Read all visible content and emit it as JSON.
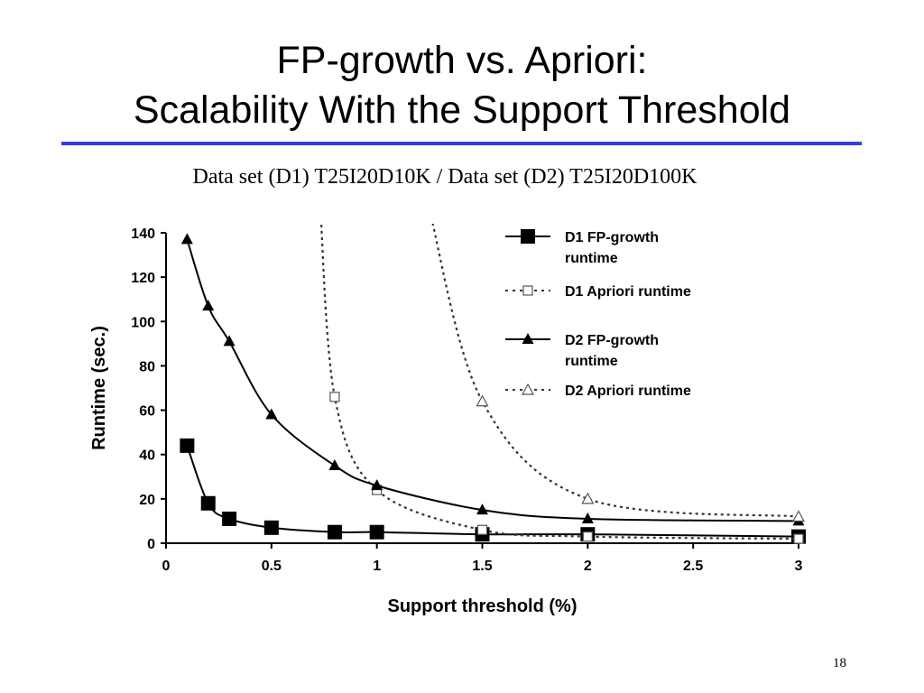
{
  "slide": {
    "title_line1": "FP-growth vs. Apriori:",
    "title_line2": "Scalability With the Support Threshold",
    "subtitle": "Data set (D1) T25I20D10K / Data set (D2) T25I20D100K",
    "page_number": "18",
    "rule_color": "#3b3ecf"
  },
  "chart_data": {
    "type": "line",
    "title": "",
    "xlabel": "Support threshold (%)",
    "ylabel": "Runtime (sec.)",
    "xlim": [
      0,
      3
    ],
    "ylim": [
      0,
      140
    ],
    "x_ticks": [
      0,
      0.5,
      1,
      1.5,
      2,
      2.5,
      3
    ],
    "x_tick_labels": [
      "0",
      "0.5",
      "1",
      "1.5",
      "2",
      "2.5",
      "3"
    ],
    "y_ticks": [
      0,
      20,
      40,
      60,
      80,
      100,
      120,
      140
    ],
    "y_tick_labels": [
      "0",
      "20",
      "40",
      "60",
      "80",
      "100",
      "120",
      "140"
    ],
    "grid": false,
    "legend_position": "top-right",
    "series": [
      {
        "name": "D1 FP-growth runtime",
        "line": "solid",
        "marker": "filled-square",
        "x": [
          0.1,
          0.2,
          0.3,
          0.5,
          0.8,
          1,
          1.5,
          2,
          3
        ],
        "y": [
          44,
          18,
          11,
          7,
          5,
          5,
          4,
          4,
          3
        ]
      },
      {
        "name": "D1 Apriori runtime",
        "line": "dotted",
        "marker": "open-square",
        "x": [
          0.8,
          1,
          1.5,
          2,
          3
        ],
        "y": [
          66,
          24,
          6,
          3,
          2
        ]
      },
      {
        "name": "D2 FP-growth runtime",
        "line": "solid",
        "marker": "filled-triangle",
        "x": [
          0.1,
          0.2,
          0.3,
          0.5,
          0.8,
          1,
          1.5,
          2,
          3
        ],
        "y": [
          137,
          107,
          91,
          58,
          35,
          26,
          15,
          11,
          10
        ]
      },
      {
        "name": "D2 Apriori runtime",
        "line": "dotted",
        "marker": "open-triangle",
        "x": [
          1.5,
          2,
          3
        ],
        "y": [
          64,
          20,
          12
        ]
      }
    ]
  }
}
